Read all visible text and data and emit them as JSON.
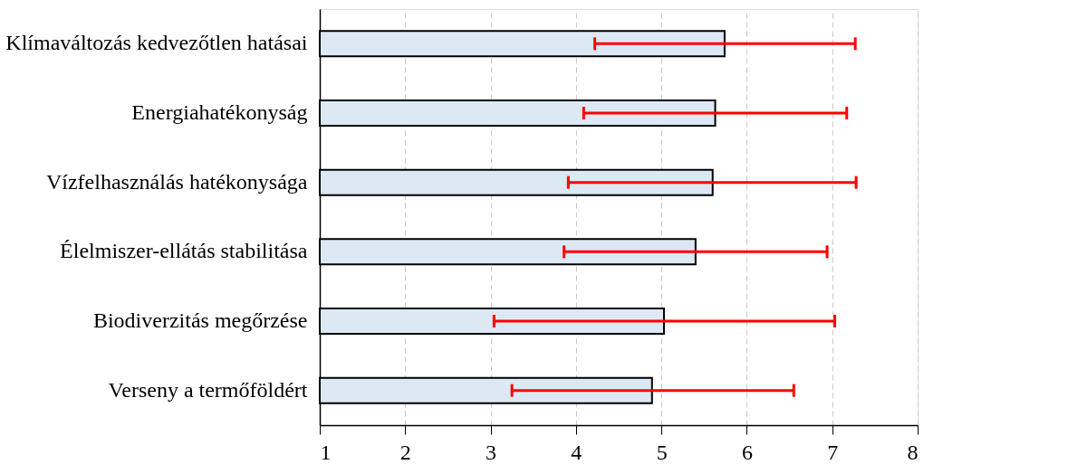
{
  "chart_data": {
    "type": "bar",
    "orientation": "horizontal",
    "categories": [
      "Klímaváltozás kedvezőtlen hatásai",
      "Energiahatékonyság",
      "Vízfelhasználás hatékonysága",
      "Élelmiszer-ellátás stabilitása",
      "Biodiverzitás megőrzése",
      "Verseny a termőföldért"
    ],
    "values": [
      5.74,
      5.63,
      5.6,
      5.4,
      5.03,
      4.89
    ],
    "errors": [
      [
        4.22,
        7.27
      ],
      [
        4.09,
        7.17
      ],
      [
        3.91,
        7.28
      ],
      [
        3.86,
        6.94
      ],
      [
        3.04,
        7.03
      ],
      [
        3.25,
        6.55
      ]
    ],
    "color": "#dce9f5",
    "xlim": [
      1,
      8
    ],
    "xticks": [
      1,
      2,
      3,
      4,
      5,
      6,
      7,
      8
    ],
    "grid": "x"
  }
}
